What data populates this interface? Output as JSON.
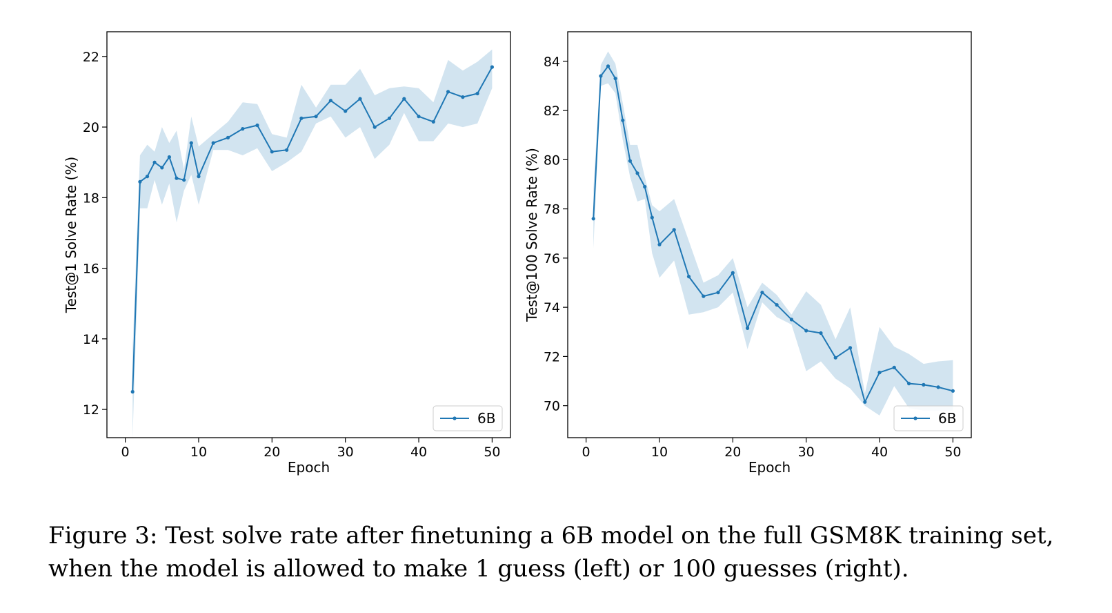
{
  "chart_data": [
    {
      "type": "line",
      "title": "",
      "xlabel": "Epoch",
      "ylabel": "Test@1 Solve Rate (%)",
      "xlim": [
        -2.5,
        52.5
      ],
      "ylim": [
        11.2,
        22.7
      ],
      "xticks": [
        0,
        10,
        20,
        30,
        40,
        50
      ],
      "yticks": [
        12,
        14,
        16,
        18,
        20,
        22
      ],
      "grid": false,
      "legend": "bottom-right",
      "series": [
        {
          "name": "6B",
          "color": "#1f77b4",
          "band_color": "#1f77b4",
          "x": [
            1,
            2,
            3,
            4,
            5,
            6,
            7,
            8,
            9,
            10,
            12,
            14,
            16,
            18,
            20,
            22,
            24,
            26,
            28,
            30,
            32,
            34,
            36,
            38,
            40,
            42,
            44,
            46,
            48,
            50
          ],
          "y": [
            12.5,
            18.45,
            18.6,
            19.0,
            18.85,
            19.15,
            18.55,
            18.5,
            19.55,
            18.6,
            19.55,
            19.7,
            19.95,
            20.05,
            19.3,
            19.35,
            20.25,
            20.3,
            20.75,
            20.45,
            20.8,
            20.0,
            20.25,
            20.8,
            20.3,
            20.15,
            21.0,
            20.85,
            20.95,
            21.7
          ],
          "lower": [
            11.2,
            17.7,
            17.7,
            18.5,
            17.8,
            18.4,
            17.3,
            18.2,
            18.65,
            17.8,
            19.35,
            19.35,
            19.2,
            19.4,
            18.75,
            19.0,
            19.3,
            20.1,
            20.3,
            19.7,
            20.0,
            19.1,
            19.5,
            20.4,
            19.6,
            19.6,
            20.1,
            20.0,
            20.1,
            21.1
          ],
          "upper": [
            13.7,
            19.2,
            19.5,
            19.3,
            20.0,
            19.55,
            19.9,
            18.8,
            20.3,
            19.45,
            19.8,
            20.15,
            20.7,
            20.65,
            19.8,
            19.7,
            21.2,
            20.55,
            21.2,
            21.2,
            21.65,
            20.9,
            21.1,
            21.15,
            21.1,
            20.7,
            21.9,
            21.6,
            21.85,
            22.2
          ]
        }
      ]
    },
    {
      "type": "line",
      "title": "",
      "xlabel": "Epoch",
      "ylabel": "Test@100 Solve Rate (%)",
      "xlim": [
        -2.5,
        52.5
      ],
      "ylim": [
        68.7,
        85.2
      ],
      "xticks": [
        0,
        10,
        20,
        30,
        40,
        50
      ],
      "yticks": [
        70,
        72,
        74,
        76,
        78,
        80,
        82,
        84
      ],
      "grid": false,
      "legend": "bottom-right",
      "series": [
        {
          "name": "6B",
          "color": "#1f77b4",
          "band_color": "#1f77b4",
          "x": [
            1,
            2,
            3,
            4,
            5,
            6,
            7,
            8,
            9,
            10,
            12,
            14,
            16,
            18,
            20,
            22,
            24,
            26,
            28,
            30,
            32,
            34,
            36,
            38,
            40,
            42,
            44,
            46,
            48,
            50
          ],
          "y": [
            77.6,
            83.4,
            83.8,
            83.3,
            81.6,
            79.95,
            79.45,
            78.9,
            77.65,
            76.55,
            77.15,
            75.25,
            74.45,
            74.6,
            75.4,
            73.15,
            74.6,
            74.1,
            73.5,
            73.05,
            72.95,
            71.95,
            72.35,
            70.15,
            71.35,
            71.55,
            70.9,
            70.85,
            70.75,
            70.6
          ],
          "lower": [
            76.4,
            83.0,
            83.1,
            82.7,
            80.8,
            79.3,
            78.3,
            78.4,
            76.2,
            75.2,
            75.9,
            73.7,
            73.8,
            74.0,
            74.6,
            72.3,
            74.2,
            73.6,
            73.3,
            71.4,
            71.8,
            71.1,
            70.7,
            70.0,
            69.6,
            70.8,
            69.9,
            69.8,
            69.8,
            69.8
          ],
          "upper": [
            78.8,
            83.85,
            84.4,
            83.9,
            82.3,
            80.6,
            80.6,
            79.3,
            78.15,
            77.9,
            78.4,
            76.7,
            75.0,
            75.3,
            76.0,
            74.0,
            75.0,
            74.5,
            73.7,
            74.65,
            74.1,
            72.7,
            74.0,
            70.5,
            73.2,
            72.4,
            72.1,
            71.7,
            71.8,
            71.85
          ]
        }
      ]
    }
  ],
  "caption": "Figure 3: Test solve rate after finetuning a 6B model on the full GSM8K training set, when the model is allowed to make 1 guess (left) or 100 guesses (right)."
}
